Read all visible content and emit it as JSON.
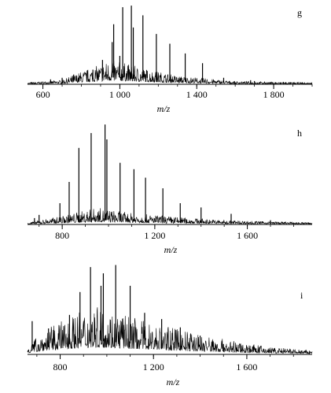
{
  "chart_data": [
    {
      "type": "line",
      "panel_label": "g",
      "xlabel": "m/z",
      "xlim": [
        520,
        2000
      ],
      "x_ticks": [
        600,
        1000,
        1400,
        1800
      ],
      "x_tick_labels": [
        "600",
        "1 000",
        "1 400",
        "1 800"
      ],
      "envelope": [
        [
          520,
          0.01
        ],
        [
          700,
          0.03
        ],
        [
          800,
          0.09
        ],
        [
          900,
          0.14
        ],
        [
          950,
          0.17
        ],
        [
          1000,
          0.16
        ],
        [
          1100,
          0.12
        ],
        [
          1200,
          0.09
        ],
        [
          1300,
          0.06
        ],
        [
          1450,
          0.04
        ],
        [
          1600,
          0.02
        ],
        [
          1800,
          0.015
        ],
        [
          2000,
          0.01
        ]
      ],
      "peaks": [
        [
          640,
          0.06
        ],
        [
          700,
          0.08
        ],
        [
          760,
          0.12
        ],
        [
          860,
          0.18
        ],
        [
          910,
          0.3
        ],
        [
          960,
          0.52
        ],
        [
          968,
          0.74
        ],
        [
          1000,
          0.35
        ],
        [
          1015,
          0.95
        ],
        [
          1060,
          0.97
        ],
        [
          1070,
          0.7
        ],
        [
          1120,
          0.85
        ],
        [
          1190,
          0.62
        ],
        [
          1260,
          0.5
        ],
        [
          1340,
          0.38
        ],
        [
          1430,
          0.26
        ],
        [
          1540,
          0.08
        ],
        [
          1680,
          0.05
        ],
        [
          1700,
          0.04
        ],
        [
          1850,
          0.03
        ]
      ]
    },
    {
      "type": "line",
      "panel_label": "h",
      "xlabel": "m/z",
      "xlim": [
        650,
        1880
      ],
      "x_ticks": [
        800,
        1200,
        1600
      ],
      "x_tick_labels": [
        "800",
        "1 200",
        "1 600"
      ],
      "envelope": [
        [
          650,
          0.01
        ],
        [
          780,
          0.04
        ],
        [
          880,
          0.07
        ],
        [
          950,
          0.09
        ],
        [
          1000,
          0.08
        ],
        [
          1100,
          0.06
        ],
        [
          1200,
          0.05
        ],
        [
          1300,
          0.04
        ],
        [
          1400,
          0.03
        ],
        [
          1550,
          0.02
        ],
        [
          1700,
          0.015
        ],
        [
          1880,
          0.01
        ]
      ],
      "peaks": [
        [
          680,
          0.06
        ],
        [
          700,
          0.09
        ],
        [
          790,
          0.2
        ],
        [
          830,
          0.4
        ],
        [
          872,
          0.72
        ],
        [
          925,
          0.86
        ],
        [
          985,
          0.94
        ],
        [
          993,
          0.8
        ],
        [
          1050,
          0.58
        ],
        [
          1110,
          0.52
        ],
        [
          1160,
          0.44
        ],
        [
          1235,
          0.34
        ],
        [
          1310,
          0.2
        ],
        [
          1400,
          0.16
        ],
        [
          1530,
          0.1
        ],
        [
          1700,
          0.04
        ]
      ]
    },
    {
      "type": "line",
      "panel_label": "i",
      "xlabel": "m/z",
      "xlim": [
        660,
        1880
      ],
      "x_ticks": [
        800,
        1200,
        1600
      ],
      "x_tick_labels": [
        "800",
        "1 200",
        "1 600"
      ],
      "envelope": [
        [
          660,
          0.05
        ],
        [
          720,
          0.12
        ],
        [
          800,
          0.18
        ],
        [
          880,
          0.23
        ],
        [
          950,
          0.26
        ],
        [
          1000,
          0.25
        ],
        [
          1100,
          0.21
        ],
        [
          1200,
          0.17
        ],
        [
          1300,
          0.14
        ],
        [
          1400,
          0.11
        ],
        [
          1550,
          0.07
        ],
        [
          1700,
          0.04
        ],
        [
          1880,
          0.02
        ]
      ],
      "peaks": [
        [
          680,
          0.32
        ],
        [
          750,
          0.25
        ],
        [
          840,
          0.38
        ],
        [
          885,
          0.6
        ],
        [
          930,
          0.84
        ],
        [
          975,
          0.66
        ],
        [
          985,
          0.78
        ],
        [
          1038,
          0.86
        ],
        [
          1100,
          0.66
        ],
        [
          1162,
          0.4
        ],
        [
          1235,
          0.34
        ],
        [
          1315,
          0.26
        ],
        [
          1400,
          0.18
        ],
        [
          1500,
          0.1
        ]
      ]
    }
  ]
}
